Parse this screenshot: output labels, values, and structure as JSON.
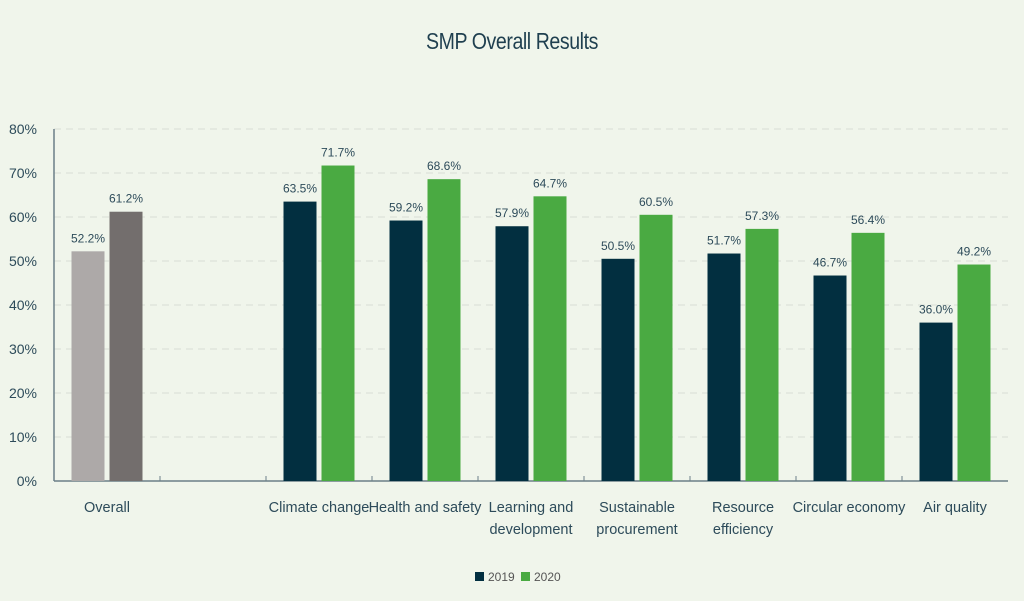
{
  "chart_data": {
    "type": "bar",
    "title": "SMP Overall Results",
    "xlabel": "",
    "ylabel": "",
    "ylim": [
      0,
      80
    ],
    "yticks": [
      "0%",
      "10%",
      "20%",
      "30%",
      "40%",
      "50%",
      "60%",
      "70%",
      "80%"
    ],
    "grid": true,
    "legend_position": "bottom",
    "categories": [
      [
        "Overall"
      ],
      [
        ""
      ],
      [
        "Climate change"
      ],
      [
        "Health and safety"
      ],
      [
        "Learning and",
        "development"
      ],
      [
        "Sustainable",
        "procurement"
      ],
      [
        "Resource",
        "efficiency"
      ],
      [
        "Circular economy"
      ],
      [
        "Air quality"
      ]
    ],
    "series": [
      {
        "name": "2019",
        "color": "#022f40",
        "values": [
          52.2,
          null,
          63.5,
          59.2,
          57.9,
          50.5,
          51.7,
          46.7,
          36.0
        ],
        "labels": [
          "52.2%",
          "",
          "63.5%",
          "59.2%",
          "57.9%",
          "50.5%",
          "51.7%",
          "46.7%",
          "36.0%"
        ]
      },
      {
        "name": "2020",
        "color": "#4aaa42",
        "values": [
          61.2,
          null,
          71.7,
          68.6,
          64.7,
          60.5,
          57.3,
          56.4,
          49.2
        ],
        "labels": [
          "61.2%",
          "",
          "71.7%",
          "68.6%",
          "64.7%",
          "60.5%",
          "57.3%",
          "56.4%",
          "49.2%"
        ]
      }
    ],
    "overall_colors": [
      "#ada9a8",
      "#736e6d"
    ]
  }
}
